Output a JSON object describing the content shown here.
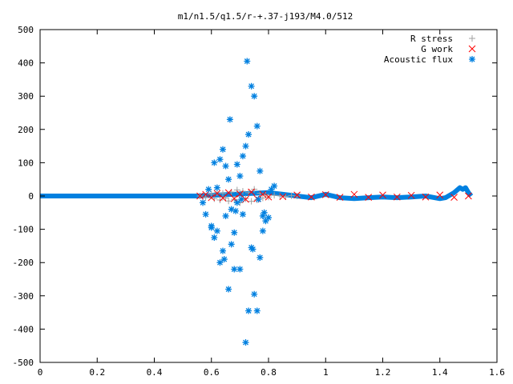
{
  "chart_data": {
    "type": "scatter",
    "title": "m1/n1.5/q1.5/r-+.37-j193/M4.0/512",
    "xlabel": "",
    "ylabel": "",
    "xlim": [
      0,
      1.6
    ],
    "ylim": [
      -500,
      500
    ],
    "x_ticks": [
      0,
      0.2,
      0.4,
      0.6,
      0.8,
      1,
      1.2,
      1.4,
      1.6
    ],
    "x_tick_labels": [
      "0",
      "0.2",
      "0.4",
      "0.6",
      "0.8",
      "1",
      "1.2",
      "1.4",
      "1.6"
    ],
    "y_ticks": [
      -500,
      -400,
      -300,
      -200,
      -100,
      0,
      100,
      200,
      300,
      400,
      500
    ],
    "y_tick_labels": [
      "-500",
      "-400",
      "-300",
      "-200",
      "-100",
      "0",
      "100",
      "200",
      "300",
      "400",
      "500"
    ],
    "grid": false,
    "legend_position": "top-right",
    "series": [
      {
        "name": "R stress",
        "marker": "plus",
        "color": "#a0a0a0",
        "x": [
          0.56,
          0.58,
          0.6,
          0.61,
          0.62,
          0.63,
          0.64,
          0.65,
          0.66,
          0.67,
          0.68,
          0.69,
          0.7,
          0.71,
          0.72,
          0.73,
          0.74,
          0.75,
          0.76,
          0.77,
          0.78,
          0.79,
          0.8,
          0.82,
          0.84,
          0.86,
          0.88,
          0.9
        ],
        "y": [
          0,
          -4,
          6,
          -8,
          10,
          -12,
          8,
          -6,
          -15,
          12,
          -10,
          18,
          -20,
          14,
          -8,
          10,
          -16,
          20,
          -12,
          8,
          -6,
          4,
          -3,
          2,
          1,
          -1,
          1,
          0
        ]
      },
      {
        "name": "G work",
        "marker": "cross",
        "color": "#ff0000",
        "x": [
          0.56,
          0.58,
          0.6,
          0.62,
          0.64,
          0.66,
          0.68,
          0.7,
          0.72,
          0.74,
          0.76,
          0.78,
          0.8,
          0.85,
          0.9,
          0.95,
          1.0,
          1.05,
          1.1,
          1.15,
          1.2,
          1.25,
          1.3,
          1.35,
          1.4,
          1.45,
          1.5
        ],
        "y": [
          0,
          5,
          -5,
          8,
          -6,
          10,
          -8,
          6,
          -10,
          12,
          -8,
          5,
          -3,
          -2,
          3,
          -3,
          4,
          -4,
          5,
          -4,
          3,
          -3,
          2,
          -3,
          3,
          -4,
          0
        ]
      },
      {
        "name": "Acoustic flux",
        "marker": "star",
        "color": "#0080e0",
        "x": [
          0.57,
          0.58,
          0.59,
          0.6,
          0.6,
          0.61,
          0.61,
          0.62,
          0.62,
          0.63,
          0.63,
          0.64,
          0.64,
          0.645,
          0.65,
          0.65,
          0.66,
          0.66,
          0.665,
          0.67,
          0.67,
          0.68,
          0.68,
          0.685,
          0.69,
          0.69,
          0.7,
          0.7,
          0.705,
          0.71,
          0.71,
          0.72,
          0.72,
          0.725,
          0.73,
          0.73,
          0.74,
          0.74,
          0.745,
          0.75,
          0.75,
          0.76,
          0.76,
          0.765,
          0.77,
          0.77,
          0.78,
          0.78,
          0.785,
          0.79,
          0.8,
          0.81,
          0.82
        ],
        "y": [
          -20,
          -55,
          20,
          -90,
          -95,
          -125,
          100,
          -105,
          25,
          -200,
          110,
          -165,
          140,
          -190,
          90,
          -60,
          -280,
          50,
          230,
          -145,
          -40,
          -220,
          -110,
          -45,
          95,
          -20,
          60,
          -220,
          -10,
          120,
          -55,
          -440,
          150,
          405,
          -345,
          185,
          330,
          -155,
          -160,
          -295,
          300,
          -345,
          210,
          -10,
          -185,
          75,
          -105,
          -60,
          -50,
          -75,
          -65,
          20,
          30
        ]
      }
    ],
    "acoustic_flux_baseline": {
      "x": [
        0,
        0.1,
        0.2,
        0.3,
        0.4,
        0.5,
        0.55,
        0.8,
        0.85,
        0.9,
        0.95,
        1.0,
        1.05,
        1.1,
        1.15,
        1.2,
        1.25,
        1.3,
        1.35,
        1.4,
        1.42,
        1.45,
        1.47,
        1.48,
        1.49,
        1.5,
        1.51
      ],
      "y": [
        0,
        0,
        0,
        0,
        0,
        0,
        0,
        10,
        5,
        0,
        -5,
        5,
        -5,
        -8,
        -5,
        -3,
        -5,
        -3,
        0,
        -8,
        -5,
        10,
        25,
        20,
        25,
        10,
        0
      ]
    }
  }
}
